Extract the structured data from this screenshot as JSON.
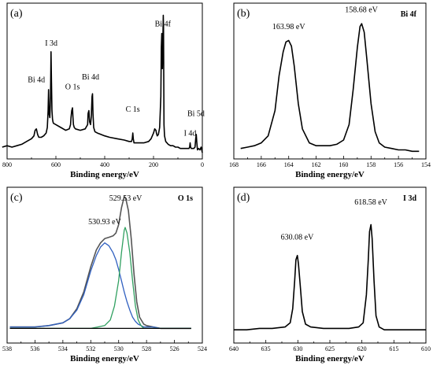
{
  "chart_data": [
    {
      "type": "line",
      "panel_label": "(a)",
      "xlabel": "Binding energy/eV",
      "xlim": [
        800,
        0
      ],
      "x_ticks": [
        "800",
        "600",
        "400",
        "200",
        "0"
      ],
      "annotations": [
        {
          "text": "Bi 4f",
          "x": 162,
          "y": 0.88
        },
        {
          "text": "I 3d",
          "x": 619,
          "y": 0.74
        },
        {
          "text": "Bi 4d",
          "x": 680,
          "y": 0.48
        },
        {
          "text": "O 1s",
          "x": 532,
          "y": 0.43
        },
        {
          "text": "Bi 4d",
          "x": 458,
          "y": 0.5
        },
        {
          "text": "C 1s",
          "x": 285,
          "y": 0.27
        },
        {
          "text": "Bi 5d",
          "x": 26,
          "y": 0.24
        },
        {
          "text": "I 4d",
          "x": 50,
          "y": 0.1
        }
      ],
      "series": [
        {
          "color": "#000000",
          "x": [
            820,
            800,
            780,
            760,
            740,
            720,
            700,
            690,
            685,
            680,
            675,
            670,
            660,
            650,
            640,
            635,
            632,
            630,
            628,
            625,
            622,
            620,
            618,
            616,
            614,
            612,
            610,
            600,
            580,
            560,
            545,
            540,
            538,
            535,
            532,
            530,
            528,
            525,
            520,
            500,
            480,
            470,
            468,
            465,
            462,
            458,
            455,
            452,
            450,
            448,
            445,
            440,
            430,
            400,
            380,
            350,
            320,
            300,
            290,
            287,
            285,
            283,
            280,
            260,
            240,
            220,
            210,
            200,
            195,
            190,
            188,
            185,
            180,
            175,
            170,
            168,
            166,
            164,
            162,
            160,
            159,
            158,
            157,
            155,
            150,
            140,
            130,
            120,
            110,
            100,
            90,
            80,
            70,
            60,
            55,
            52,
            50,
            48,
            45,
            40,
            35,
            30,
            27,
            25,
            23,
            20,
            15,
            10,
            5,
            0
          ],
          "y": [
            0.04,
            0.05,
            0.04,
            0.05,
            0.06,
            0.08,
            0.1,
            0.12,
            0.16,
            0.17,
            0.13,
            0.11,
            0.11,
            0.12,
            0.14,
            0.18,
            0.3,
            0.45,
            0.28,
            0.25,
            0.4,
            0.72,
            0.5,
            0.3,
            0.24,
            0.22,
            0.21,
            0.2,
            0.18,
            0.16,
            0.17,
            0.2,
            0.25,
            0.3,
            0.32,
            0.25,
            0.2,
            0.18,
            0.17,
            0.16,
            0.17,
            0.2,
            0.28,
            0.3,
            0.22,
            0.2,
            0.26,
            0.4,
            0.42,
            0.28,
            0.18,
            0.15,
            0.14,
            0.12,
            0.11,
            0.1,
            0.09,
            0.08,
            0.08,
            0.1,
            0.14,
            0.1,
            0.07,
            0.07,
            0.07,
            0.08,
            0.1,
            0.14,
            0.17,
            0.16,
            0.14,
            0.12,
            0.13,
            0.18,
            0.4,
            0.75,
            0.85,
            0.6,
            0.78,
            0.98,
            0.9,
            0.55,
            0.2,
            0.12,
            0.08,
            0.06,
            0.05,
            0.05,
            0.04,
            0.04,
            0.03,
            0.03,
            0.03,
            0.03,
            0.03,
            0.04,
            0.07,
            0.04,
            0.03,
            0.03,
            0.03,
            0.04,
            0.1,
            0.13,
            0.08,
            0.02,
            0.03,
            0.02,
            0.04,
            0.0
          ]
        }
      ]
    },
    {
      "type": "line",
      "panel_label": "(b)",
      "peak_name": "Bi 4f",
      "xlabel": "Binding energy/eV",
      "xlim": [
        168,
        154
      ],
      "x_ticks": [
        "168",
        "166",
        "164",
        "162",
        "160",
        "158",
        "156",
        "154"
      ],
      "annotations": [
        {
          "text": "163.98 eV",
          "x": 164.0,
          "y": 0.86
        },
        {
          "text": "158.68 eV",
          "x": 158.7,
          "y": 0.98
        }
      ],
      "series": [
        {
          "color": "#000000",
          "x": [
            167.5,
            167,
            166.5,
            166,
            165.5,
            165,
            164.7,
            164.4,
            164.2,
            164.0,
            163.8,
            163.6,
            163.3,
            163,
            162.5,
            162,
            161.5,
            161,
            160.5,
            160,
            159.6,
            159.3,
            159.0,
            158.8,
            158.68,
            158.5,
            158.3,
            158.0,
            157.7,
            157.4,
            157,
            156.5,
            156,
            155.5,
            155,
            154.5
          ],
          "y": [
            0.03,
            0.04,
            0.05,
            0.07,
            0.12,
            0.3,
            0.55,
            0.72,
            0.79,
            0.8,
            0.76,
            0.62,
            0.35,
            0.17,
            0.07,
            0.05,
            0.05,
            0.05,
            0.06,
            0.09,
            0.2,
            0.45,
            0.75,
            0.9,
            0.92,
            0.86,
            0.66,
            0.35,
            0.15,
            0.07,
            0.04,
            0.03,
            0.02,
            0.02,
            0.01,
            0.01
          ]
        }
      ]
    },
    {
      "type": "line",
      "panel_label": "(c)",
      "peak_name": "O 1s",
      "xlabel": "Binding energy/eV",
      "xlim": [
        538,
        524
      ],
      "x_ticks": [
        "538",
        "536",
        "534",
        "532",
        "530",
        "528",
        "526",
        "524"
      ],
      "annotations": [
        {
          "text": "530.93 eV",
          "x": 531.0,
          "y": 0.78
        },
        {
          "text": "529.53 eV",
          "x": 529.5,
          "y": 0.95
        }
      ],
      "series": [
        {
          "color": "#555555",
          "x": [
            537.8,
            537,
            536,
            535,
            534,
            533.5,
            533,
            532.5,
            532,
            531.6,
            531.3,
            531.0,
            530.7,
            530.4,
            530.2,
            530.0,
            529.8,
            529.6,
            529.5,
            529.3,
            529.1,
            528.9,
            528.7,
            528.5,
            528.2,
            528,
            527.5,
            527,
            526,
            525,
            524.8
          ],
          "y": [
            0.07,
            0.07,
            0.07,
            0.08,
            0.1,
            0.13,
            0.2,
            0.32,
            0.5,
            0.62,
            0.67,
            0.7,
            0.71,
            0.72,
            0.74,
            0.8,
            0.92,
            1.0,
            0.99,
            0.9,
            0.7,
            0.45,
            0.25,
            0.14,
            0.09,
            0.08,
            0.07,
            0.06,
            0.06,
            0.06,
            0.06
          ]
        },
        {
          "color": "#3060c0",
          "x": [
            537.8,
            537,
            536,
            535,
            534,
            533.5,
            533,
            532.5,
            532,
            531.6,
            531.3,
            531.0,
            530.7,
            530.4,
            530.2,
            530.0,
            529.8,
            529.6,
            529.4,
            529.2,
            529.0,
            528.8,
            528.6,
            528.4,
            528.2,
            528,
            527.5,
            527,
            526,
            525,
            524.8
          ],
          "y": [
            0.07,
            0.07,
            0.07,
            0.08,
            0.1,
            0.13,
            0.19,
            0.3,
            0.47,
            0.58,
            0.64,
            0.67,
            0.65,
            0.6,
            0.55,
            0.48,
            0.4,
            0.32,
            0.25,
            0.19,
            0.14,
            0.11,
            0.09,
            0.08,
            0.07,
            0.07,
            0.07,
            0.06,
            0.06,
            0.06,
            0.06
          ]
        },
        {
          "color": "#30a060",
          "x": [
            537.8,
            537,
            536,
            535,
            534,
            533,
            532,
            531.5,
            531.0,
            530.6,
            530.3,
            530.0,
            529.8,
            529.6,
            529.53,
            529.4,
            529.2,
            529.0,
            528.8,
            528.6,
            528.4,
            528.2,
            528,
            527.5,
            527,
            526,
            525,
            524.8
          ],
          "y": [
            0.06,
            0.06,
            0.06,
            0.06,
            0.06,
            0.06,
            0.06,
            0.07,
            0.08,
            0.12,
            0.22,
            0.4,
            0.6,
            0.76,
            0.78,
            0.74,
            0.6,
            0.4,
            0.22,
            0.12,
            0.08,
            0.06,
            0.06,
            0.06,
            0.06,
            0.06,
            0.06,
            0.06
          ]
        },
        {
          "color": "#000000",
          "x": [
            537.8,
            534,
            531,
            529,
            527,
            525,
            524.8
          ],
          "y": [
            0.06,
            0.06,
            0.06,
            0.06,
            0.06,
            0.06,
            0.06
          ]
        }
      ]
    },
    {
      "type": "line",
      "panel_label": "(d)",
      "peak_name": "I 3d",
      "xlabel": "Binding energy/eV",
      "xlim": [
        640,
        610
      ],
      "x_ticks": [
        "640",
        "635",
        "630",
        "625",
        "620",
        "615",
        "610"
      ],
      "annotations": [
        {
          "text": "630.08 eV",
          "x": 630.1,
          "y": 0.67
        },
        {
          "text": "618.58 eV",
          "x": 618.6,
          "y": 0.92
        }
      ],
      "series": [
        {
          "color": "#000000",
          "x": [
            640,
            638,
            636,
            634,
            632,
            631.2,
            630.8,
            630.5,
            630.3,
            630.08,
            629.9,
            629.6,
            629.3,
            628.8,
            628,
            626,
            624,
            622,
            620.5,
            619.8,
            619.3,
            619.0,
            618.8,
            618.58,
            618.4,
            618.1,
            617.8,
            617.3,
            616.5,
            615,
            613,
            611,
            610
          ],
          "y": [
            0.05,
            0.05,
            0.06,
            0.06,
            0.07,
            0.1,
            0.2,
            0.4,
            0.55,
            0.58,
            0.52,
            0.35,
            0.18,
            0.09,
            0.07,
            0.06,
            0.06,
            0.06,
            0.07,
            0.1,
            0.3,
            0.55,
            0.75,
            0.8,
            0.7,
            0.4,
            0.15,
            0.07,
            0.05,
            0.05,
            0.05,
            0.05,
            0.05
          ]
        }
      ]
    }
  ]
}
